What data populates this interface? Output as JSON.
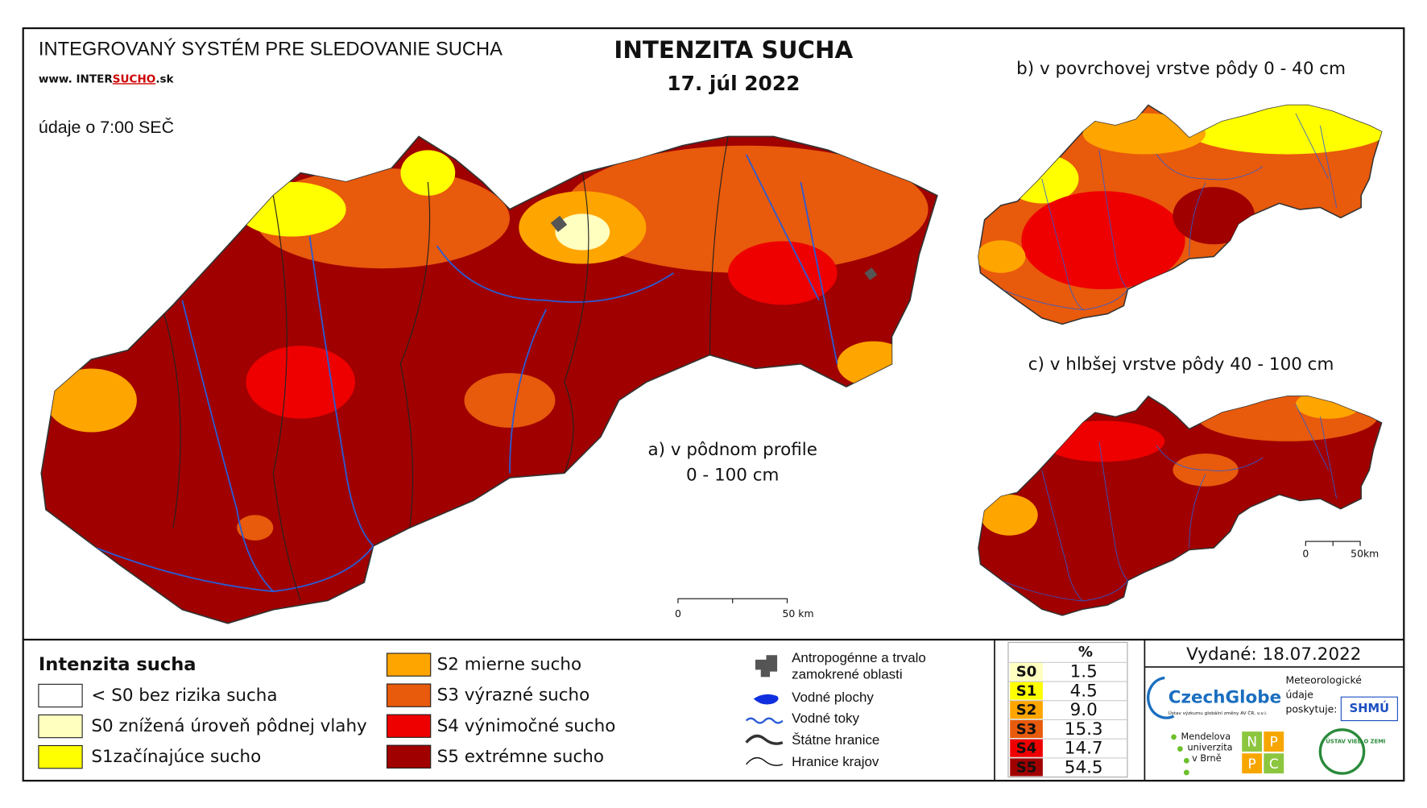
{
  "header": {
    "system": "INTEGROVANÝ SYSTÉM PRE SLEDOVANIE SUCHA",
    "website_prefix": "www. INTER",
    "website_highlight": "SUCHO",
    "website_suffix": ".sk",
    "time_note": "údaje o 7:00 SEČ"
  },
  "title": {
    "main": "INTENZITA SUCHA",
    "date": "17. júl 2022"
  },
  "maps": {
    "a_line1": "a) v pôdnom profile",
    "a_line2": "0 - 100 cm",
    "b": "b) v povrchovej vrstve pôdy 0 - 40 cm",
    "c": "c) v hlbšej vrstve pôdy 40 - 100 cm"
  },
  "scale_bars": [
    {
      "start": "0",
      "end": "50 km"
    },
    {
      "start": "0",
      "end": "50km"
    }
  ],
  "legend": {
    "title": "Intenzita sucha",
    "items": [
      {
        "label": "< S0 bez rizika sucha",
        "color": "#ffffff"
      },
      {
        "label": "S0 znížená úroveň pôdnej vlahy",
        "color": "#ffffc0"
      },
      {
        "label": "S1začínajúce sucho",
        "color": "#ffff00"
      },
      {
        "label": "S2 mierne sucho",
        "color": "#ffa500"
      },
      {
        "label": "S3 výrazné sucho",
        "color": "#e85a0c"
      },
      {
        "label": "S4 výnimočné sucho",
        "color": "#ee0000"
      },
      {
        "label": "S5 extrémne sucho",
        "color": "#a00000"
      }
    ]
  },
  "layers": [
    {
      "label": [
        "Antropogénne a trvalo",
        "zamokrené oblasti"
      ]
    },
    {
      "label": [
        "Vodné plochy"
      ]
    },
    {
      "label": [
        "Vodné toky"
      ]
    },
    {
      "label": [
        "Štátne hranice"
      ]
    },
    {
      "label": [
        "Hranice krajov"
      ]
    }
  ],
  "stats": {
    "header": "%",
    "rows": [
      {
        "class": "S0",
        "percent": "1.5",
        "color": "#ffffc0"
      },
      {
        "class": "S1",
        "percent": "4.5",
        "color": "#ffff00"
      },
      {
        "class": "S2",
        "percent": "9.0",
        "color": "#ffa500"
      },
      {
        "class": "S3",
        "percent": "15.3",
        "color": "#e85a0c"
      },
      {
        "class": "S4",
        "percent": "14.7",
        "color": "#ee0000"
      },
      {
        "class": "S5",
        "percent": "54.5",
        "color": "#a00000"
      }
    ]
  },
  "issued": "Vydané: 18.07.2022",
  "credits": {
    "czechglobe": "CzechGlobe",
    "czechglobe_sub": "Ústav výzkumu globální změny AV ČR, v.v.i.",
    "meteo": [
      "Meteorologické",
      "údaje",
      "poskytuje:"
    ],
    "shmu": "SHMÚ",
    "mendel": [
      "Mendelova",
      "univerzita",
      "v Brně"
    ],
    "npc": [
      "N",
      "P",
      "P",
      "C"
    ],
    "uvz": "ÚSTAV VIED O ZEMI"
  }
}
